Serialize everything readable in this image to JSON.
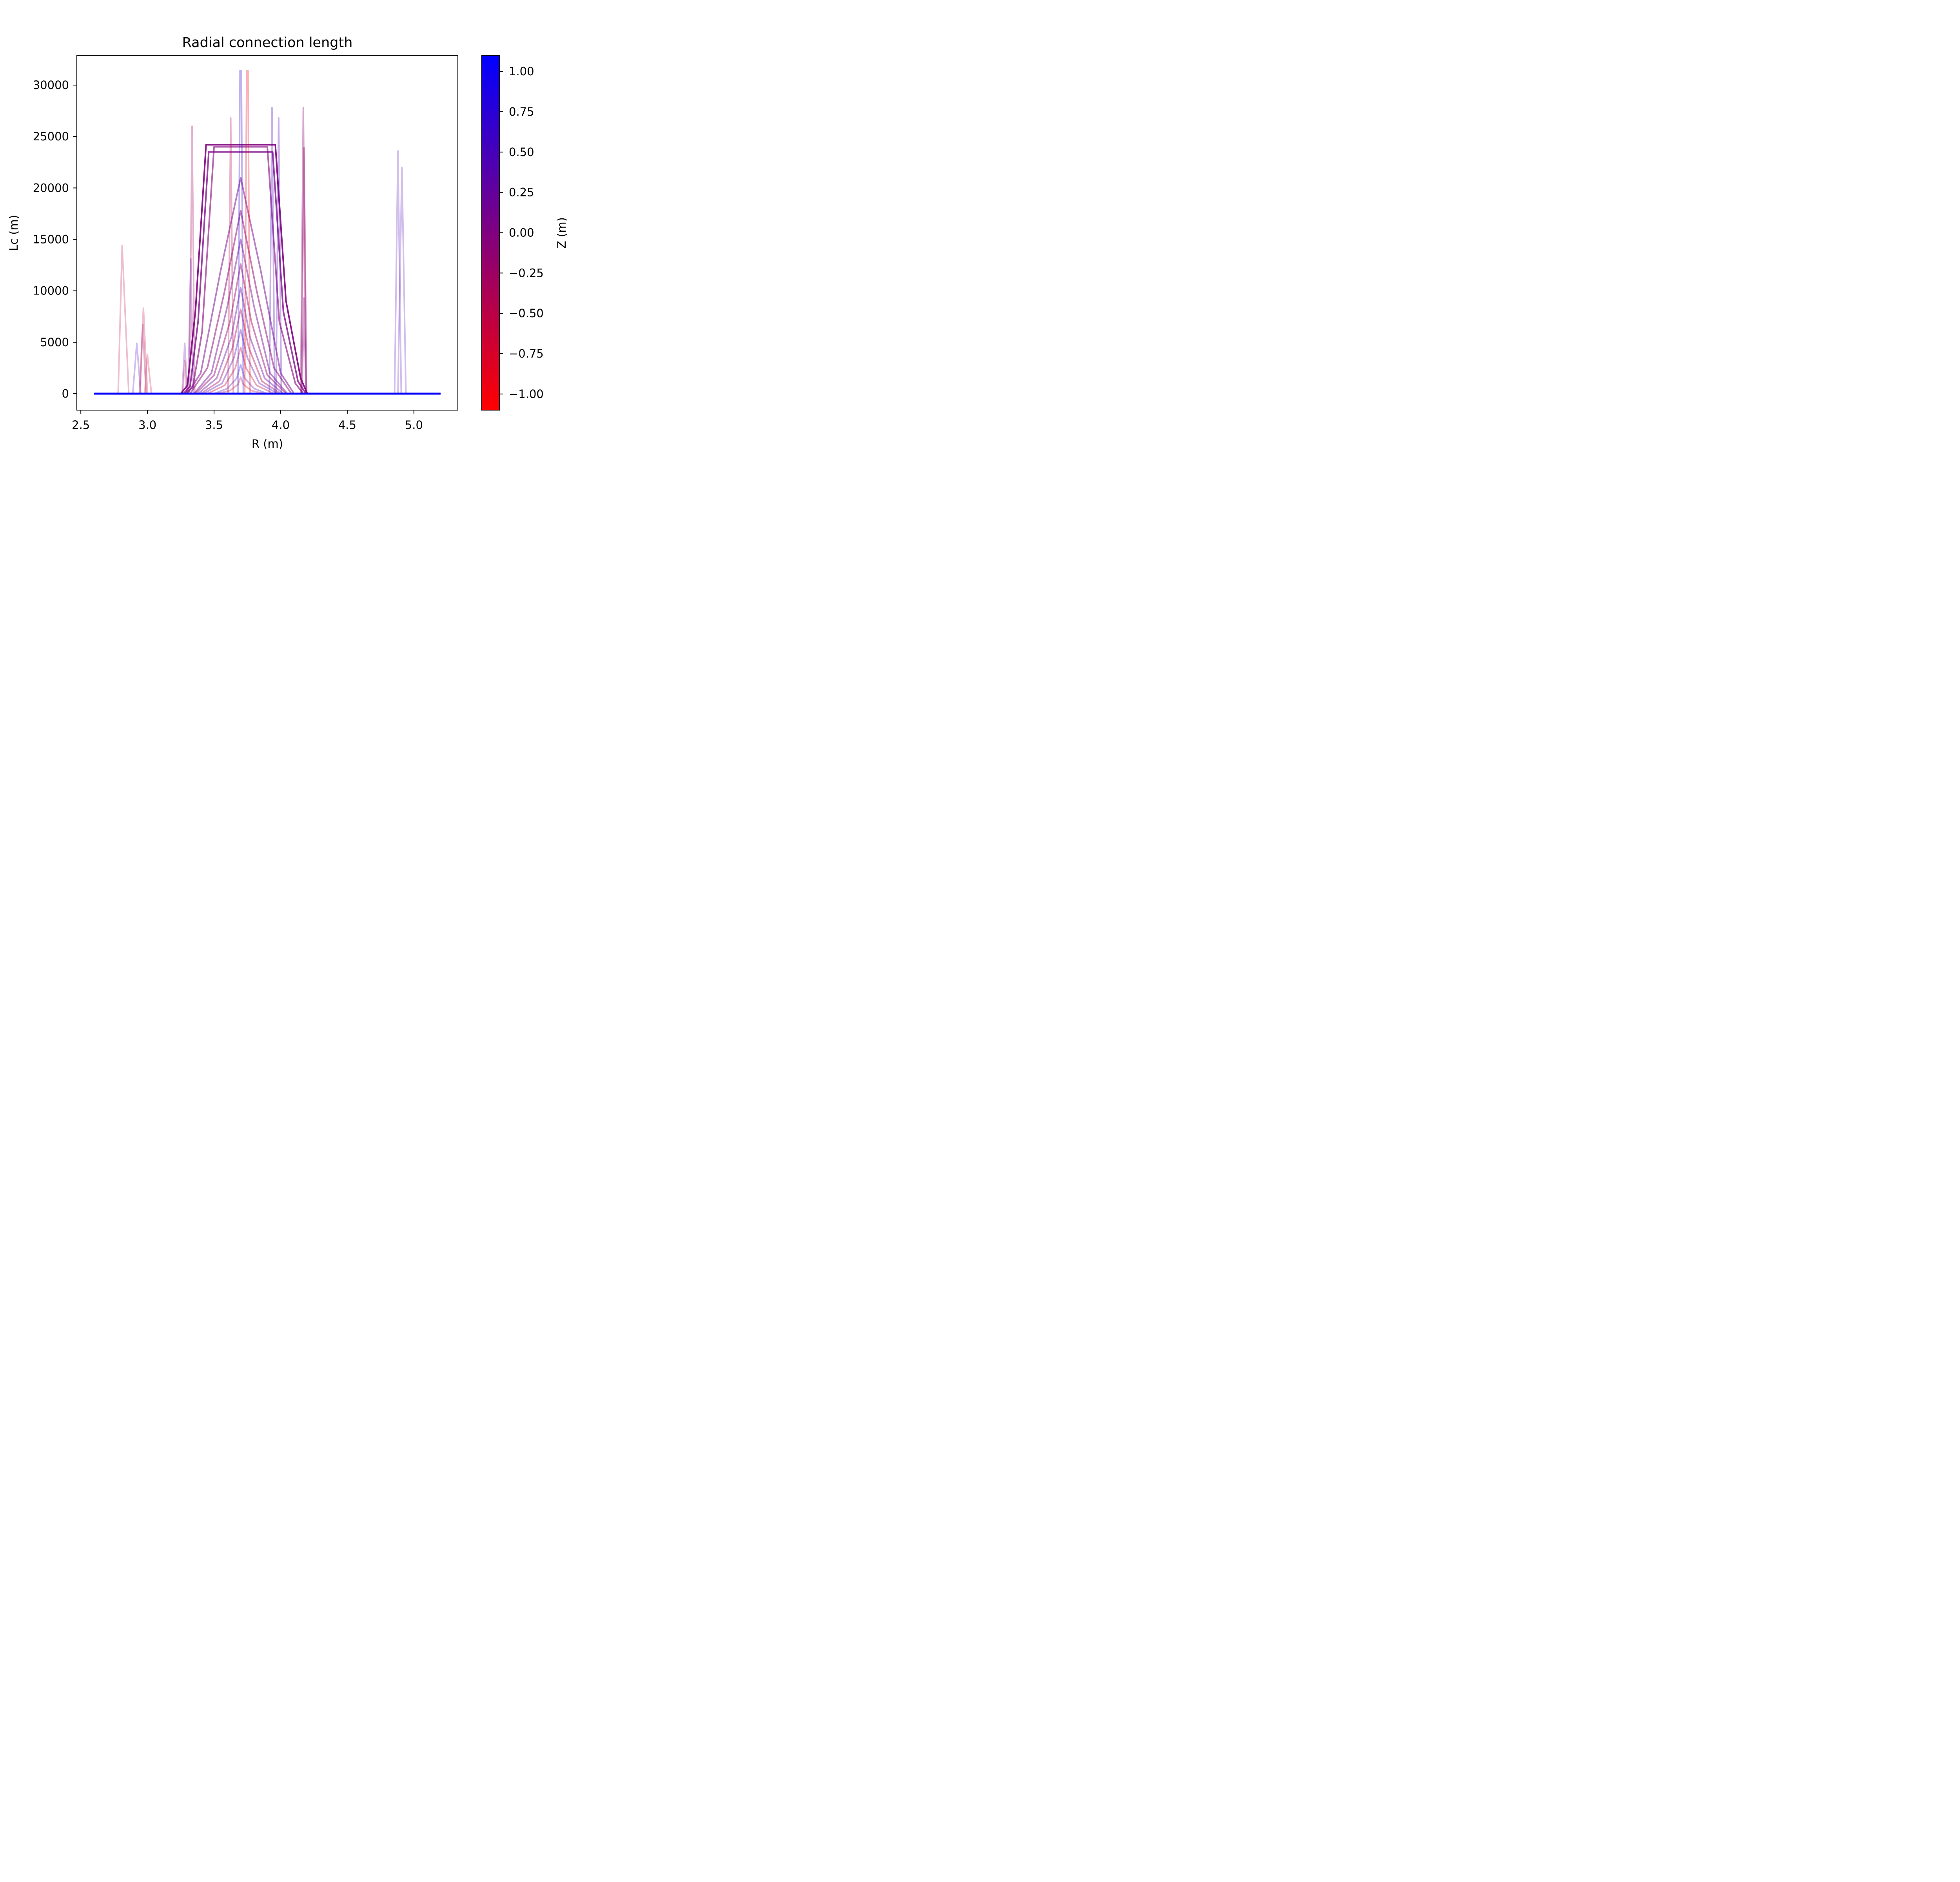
{
  "chart_data": {
    "type": "line",
    "title": "Radial connection length",
    "xlabel": "R (m)",
    "ylabel": "Lc (m)",
    "xlim": [
      2.47,
      5.33
    ],
    "ylim": [
      -1600,
      32900
    ],
    "xticks": [
      2.5,
      3.0,
      3.5,
      4.0,
      4.5,
      5.0
    ],
    "xtick_labels": [
      "2.5",
      "3.0",
      "3.5",
      "4.0",
      "4.5",
      "5.0"
    ],
    "yticks": [
      0,
      5000,
      10000,
      15000,
      20000,
      25000,
      30000
    ],
    "ytick_labels": [
      "0",
      "5000",
      "10000",
      "15000",
      "20000",
      "25000",
      "30000"
    ],
    "grid": false,
    "colorbar": {
      "label": "Z (m)",
      "range": [
        -1.1,
        1.1
      ],
      "ticks": [
        -1.0,
        -0.75,
        -0.5,
        -0.25,
        0.0,
        0.25,
        0.5,
        0.75,
        1.0
      ],
      "tick_labels": [
        "−1.00",
        "−0.75",
        "−0.50",
        "−0.25",
        "0.00",
        "0.25",
        "0.50",
        "0.75",
        "1.00"
      ],
      "colors": [
        "#ff0000",
        "#800080",
        "#0000ff"
      ]
    },
    "series": [
      {
        "z": 0.0,
        "alpha": 0.9,
        "width": 4,
        "x": [
          2.6,
          3.25,
          3.3,
          3.36,
          3.44,
          3.96,
          4.04,
          4.15,
          4.2,
          5.2
        ],
        "y": [
          0,
          0,
          800,
          8000,
          24200,
          24200,
          9000,
          1500,
          0,
          0
        ]
      },
      {
        "z": 0.05,
        "alpha": 0.75,
        "width": 4,
        "x": [
          2.6,
          3.27,
          3.32,
          3.38,
          3.46,
          3.94,
          4.02,
          4.13,
          4.19,
          5.2
        ],
        "y": [
          0,
          0,
          700,
          7000,
          23500,
          23500,
          8000,
          1200,
          0,
          0
        ]
      },
      {
        "z": -0.05,
        "alpha": 0.6,
        "width": 4,
        "x": [
          2.6,
          3.28,
          3.34,
          3.41,
          3.5,
          3.9,
          3.99,
          4.11,
          4.17,
          5.2
        ],
        "y": [
          0,
          0,
          600,
          6000,
          24000,
          24000,
          7000,
          1000,
          0,
          0
        ]
      },
      {
        "z": 0.1,
        "alpha": 0.5,
        "width": 4,
        "x": [
          2.6,
          3.3,
          3.4,
          3.55,
          3.7,
          3.85,
          4.0,
          4.1,
          5.2
        ],
        "y": [
          0,
          0,
          2000,
          12000,
          21000,
          12000,
          2000,
          0,
          0
        ]
      },
      {
        "z": -0.1,
        "alpha": 0.5,
        "width": 4,
        "x": [
          2.6,
          3.32,
          3.45,
          3.58,
          3.7,
          3.82,
          3.95,
          4.08,
          5.2
        ],
        "y": [
          0,
          0,
          2500,
          10000,
          17800,
          10000,
          2500,
          0,
          0
        ]
      },
      {
        "z": 0.15,
        "alpha": 0.45,
        "width": 4,
        "x": [
          2.6,
          3.35,
          3.48,
          3.6,
          3.7,
          3.8,
          3.92,
          4.05,
          5.2
        ],
        "y": [
          0,
          0,
          2000,
          8500,
          15000,
          8500,
          2000,
          0,
          0
        ]
      },
      {
        "z": -0.2,
        "alpha": 0.45,
        "width": 4,
        "x": [
          2.6,
          3.36,
          3.5,
          3.62,
          3.7,
          3.78,
          3.9,
          4.04,
          5.2
        ],
        "y": [
          0,
          0,
          1800,
          7000,
          12600,
          7000,
          1800,
          0,
          0
        ]
      },
      {
        "z": 0.3,
        "alpha": 0.4,
        "width": 4,
        "x": [
          2.6,
          3.38,
          3.52,
          3.63,
          3.7,
          3.77,
          3.88,
          4.02,
          5.2
        ],
        "y": [
          0,
          0,
          1500,
          5500,
          10300,
          5500,
          1500,
          0,
          0
        ]
      },
      {
        "z": -0.35,
        "alpha": 0.4,
        "width": 4,
        "x": [
          2.6,
          3.4,
          3.54,
          3.64,
          3.7,
          3.76,
          3.86,
          4.0,
          5.2
        ],
        "y": [
          0,
          0,
          1200,
          4500,
          8200,
          4500,
          1200,
          0,
          0
        ]
      },
      {
        "z": 0.45,
        "alpha": 0.35,
        "width": 4,
        "x": [
          2.6,
          3.42,
          3.56,
          3.65,
          3.7,
          3.75,
          3.84,
          3.98,
          5.2
        ],
        "y": [
          0,
          0,
          1000,
          3500,
          6200,
          3500,
          1000,
          0,
          0
        ]
      },
      {
        "z": -0.5,
        "alpha": 0.35,
        "width": 4,
        "x": [
          2.6,
          3.45,
          3.58,
          3.66,
          3.7,
          3.74,
          3.82,
          3.95,
          5.2
        ],
        "y": [
          0,
          0,
          800,
          2500,
          4500,
          2500,
          800,
          0,
          0
        ]
      },
      {
        "z": 0.6,
        "alpha": 0.3,
        "width": 4,
        "x": [
          2.6,
          3.5,
          3.6,
          3.67,
          3.7,
          3.73,
          3.8,
          3.9,
          5.2
        ],
        "y": [
          0,
          0,
          500,
          1500,
          2800,
          1500,
          500,
          0,
          0
        ]
      },
      {
        "z": -0.6,
        "alpha": 0.3,
        "width": 4,
        "x": [
          2.6,
          3.52,
          3.62,
          3.68,
          3.7,
          3.72,
          3.78,
          3.88,
          5.2
        ],
        "y": [
          0,
          0,
          300,
          900,
          1600,
          900,
          300,
          0,
          0
        ]
      },
      {
        "z": 0.7,
        "alpha": 0.3,
        "width": 4,
        "x": [
          2.6,
          3.68,
          3.695,
          3.705,
          3.72,
          5.2
        ],
        "y": [
          0,
          0,
          31400,
          31400,
          0,
          0
        ]
      },
      {
        "z": -0.9,
        "alpha": 0.3,
        "width": 4,
        "x": [
          2.6,
          3.73,
          3.745,
          3.755,
          3.77,
          5.2
        ],
        "y": [
          0,
          0,
          31400,
          31400,
          0,
          0
        ]
      },
      {
        "z": -0.4,
        "alpha": 0.3,
        "width": 4,
        "x": [
          2.6,
          3.605,
          3.625,
          3.645,
          5.2
        ],
        "y": [
          0,
          0,
          26800,
          0,
          0
        ]
      },
      {
        "z": 0.5,
        "alpha": 0.3,
        "width": 4,
        "x": [
          2.6,
          3.915,
          3.935,
          3.955,
          5.2
        ],
        "y": [
          0,
          0,
          27800,
          0,
          0
        ]
      },
      {
        "z": 0.4,
        "alpha": 0.3,
        "width": 4,
        "x": [
          2.6,
          3.965,
          3.985,
          4.005,
          5.2
        ],
        "y": [
          0,
          0,
          26800,
          0,
          0
        ]
      },
      {
        "z": -0.3,
        "alpha": 0.3,
        "width": 4,
        "x": [
          2.6,
          3.315,
          3.335,
          3.355,
          5.2
        ],
        "y": [
          0,
          0,
          26000,
          0,
          0
        ]
      },
      {
        "z": 0.2,
        "alpha": 0.3,
        "width": 4,
        "x": [
          2.6,
          3.305,
          3.325,
          3.345,
          5.2
        ],
        "y": [
          0,
          0,
          13100,
          0,
          0
        ]
      },
      {
        "z": -0.1,
        "alpha": 0.35,
        "width": 4,
        "x": [
          2.6,
          4.15,
          4.17,
          4.19,
          5.2
        ],
        "y": [
          0,
          0,
          27800,
          0,
          0
        ]
      },
      {
        "z": -0.2,
        "alpha": 0.4,
        "width": 4,
        "x": [
          2.6,
          4.155,
          4.175,
          4.195,
          5.2
        ],
        "y": [
          0,
          0,
          23900,
          0,
          0
        ]
      },
      {
        "z": 0.0,
        "alpha": 0.35,
        "width": 4,
        "x": [
          2.6,
          4.16,
          4.175,
          4.19,
          5.2
        ],
        "y": [
          0,
          0,
          9300,
          0,
          0
        ]
      },
      {
        "z": 0.3,
        "alpha": 0.25,
        "width": 4,
        "x": [
          2.6,
          3.26,
          3.28,
          3.3,
          5.2
        ],
        "y": [
          0,
          0,
          4900,
          0,
          0
        ]
      },
      {
        "z": -0.4,
        "alpha": 0.25,
        "width": 4,
        "x": [
          2.6,
          3.265,
          3.28,
          3.295,
          5.2
        ],
        "y": [
          0,
          0,
          3200,
          0,
          0
        ]
      },
      {
        "z": -0.5,
        "alpha": 0.25,
        "width": 4,
        "x": [
          2.6,
          2.78,
          2.81,
          2.86,
          5.2
        ],
        "y": [
          0,
          0,
          14400,
          0,
          0
        ]
      },
      {
        "z": 0.6,
        "alpha": 0.25,
        "width": 4,
        "x": [
          2.6,
          2.89,
          2.92,
          2.95,
          5.2
        ],
        "y": [
          0,
          0,
          4900,
          0,
          0
        ]
      },
      {
        "z": -0.6,
        "alpha": 0.25,
        "width": 4,
        "x": [
          2.6,
          2.94,
          2.97,
          3.0,
          5.2
        ],
        "y": [
          0,
          0,
          8300,
          0,
          0
        ]
      },
      {
        "z": -0.3,
        "alpha": 0.3,
        "width": 4,
        "x": [
          2.6,
          2.945,
          2.965,
          2.99,
          5.2
        ],
        "y": [
          0,
          0,
          6700,
          0,
          0
        ]
      },
      {
        "z": -0.7,
        "alpha": 0.25,
        "width": 4,
        "x": [
          2.6,
          2.98,
          3.0,
          3.03,
          5.2
        ],
        "y": [
          0,
          0,
          3800,
          0,
          0
        ]
      },
      {
        "z": 0.5,
        "alpha": 0.25,
        "width": 4,
        "x": [
          2.6,
          4.855,
          4.88,
          4.905,
          5.2
        ],
        "y": [
          0,
          0,
          23600,
          0,
          0
        ]
      },
      {
        "z": 0.45,
        "alpha": 0.25,
        "width": 4,
        "x": [
          2.6,
          4.88,
          4.91,
          4.94,
          5.2
        ],
        "y": [
          0,
          0,
          22000,
          0,
          0
        ]
      },
      {
        "z": 1.05,
        "alpha": 1.0,
        "width": 5,
        "x": [
          2.6,
          5.2
        ],
        "y": [
          0,
          0
        ]
      }
    ]
  }
}
